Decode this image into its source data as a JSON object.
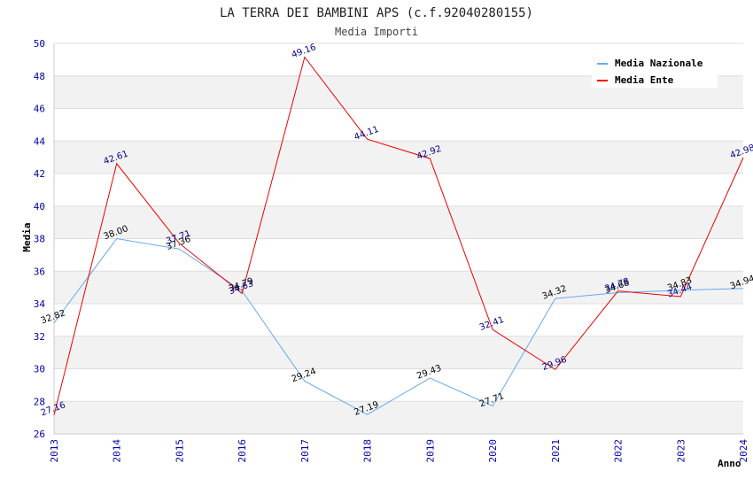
{
  "chart_data": {
    "type": "line",
    "title": "LA TERRA DEI BAMBINI APS (c.f.92040280155)",
    "subtitle": "Media Importi",
    "xlabel": "Anno",
    "ylabel": "Media",
    "categories": [
      "2013",
      "2014",
      "2015",
      "2016",
      "2017",
      "2018",
      "2019",
      "2020",
      "2021",
      "2022",
      "2023",
      "2024"
    ],
    "yticks": [
      "26",
      "28",
      "30",
      "32",
      "34",
      "36",
      "38",
      "40",
      "42",
      "44",
      "46",
      "48",
      "50"
    ],
    "ylim": [
      26,
      50
    ],
    "grid": true,
    "legend_position": "top-right",
    "series": [
      {
        "name": "Media Nazionale",
        "color": "#66aaee",
        "label_color": "#000000",
        "values": [
          32.82,
          38.0,
          37.36,
          34.79,
          29.24,
          27.19,
          29.43,
          27.71,
          34.32,
          34.68,
          34.83,
          34.94
        ],
        "labels": [
          "32.82",
          "38.00",
          "37.36",
          "34.79",
          "29.24",
          "27.19",
          "29.43",
          "27.71",
          "34.32",
          "34.68",
          "34.83",
          "34.94"
        ]
      },
      {
        "name": "Media Ente",
        "color": "#ee0000",
        "label_color": "#000088",
        "values": [
          27.16,
          42.61,
          37.71,
          34.63,
          49.16,
          44.11,
          42.92,
          32.41,
          29.96,
          34.78,
          34.44,
          42.98
        ],
        "labels": [
          "27.16",
          "42.61",
          "37.71",
          "34.63",
          "49.16",
          "44.11",
          "42.92",
          "32.41",
          "29.96",
          "34.78",
          "34.44",
          "42.98"
        ]
      }
    ]
  }
}
